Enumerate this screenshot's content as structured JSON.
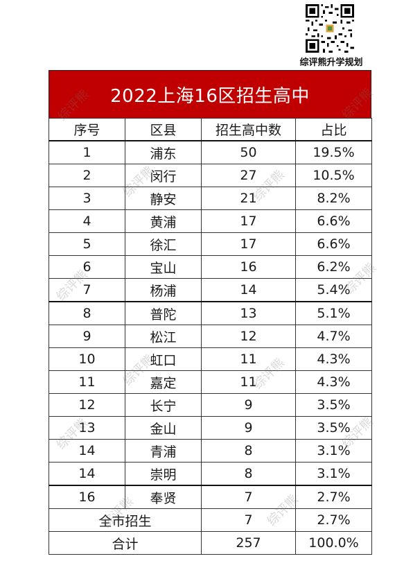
{
  "brand": {
    "name": "综评熊升学规划"
  },
  "table": {
    "title": "2022上海16区招生高中",
    "headers": [
      "序号",
      "区县",
      "招生高中数",
      "占比"
    ],
    "rows": [
      [
        "1",
        "浦东",
        "50",
        "19.5%"
      ],
      [
        "2",
        "闵行",
        "27",
        "10.5%"
      ],
      [
        "3",
        "静安",
        "21",
        "8.2%"
      ],
      [
        "4",
        "黄浦",
        "17",
        "6.6%"
      ],
      [
        "5",
        "徐汇",
        "17",
        "6.6%"
      ],
      [
        "6",
        "宝山",
        "16",
        "6.2%"
      ],
      [
        "7",
        "杨浦",
        "14",
        "5.4%"
      ],
      [
        "8",
        "普陀",
        "13",
        "5.1%"
      ],
      [
        "9",
        "松江",
        "12",
        "4.7%"
      ],
      [
        "10",
        "虹口",
        "11",
        "4.3%"
      ],
      [
        "11",
        "嘉定",
        "11",
        "4.3%"
      ],
      [
        "12",
        "长宁",
        "9",
        "3.5%"
      ],
      [
        "13",
        "金山",
        "9",
        "3.5%"
      ],
      [
        "14",
        "青浦",
        "8",
        "3.1%"
      ],
      [
        "14",
        "崇明",
        "8",
        "3.1%"
      ],
      [
        "16",
        "奉贤",
        "7",
        "2.7%"
      ]
    ],
    "citywide": {
      "label": "全市招生",
      "count": "7",
      "share": "2.7%"
    },
    "total": {
      "label": "合计",
      "count": "257",
      "share": "100.0%"
    }
  },
  "watermark": "综评熊",
  "colors": {
    "title_bg": "#c00000",
    "title_text": "#ffffff"
  },
  "icons": {
    "qr": "qr-code-icon"
  }
}
